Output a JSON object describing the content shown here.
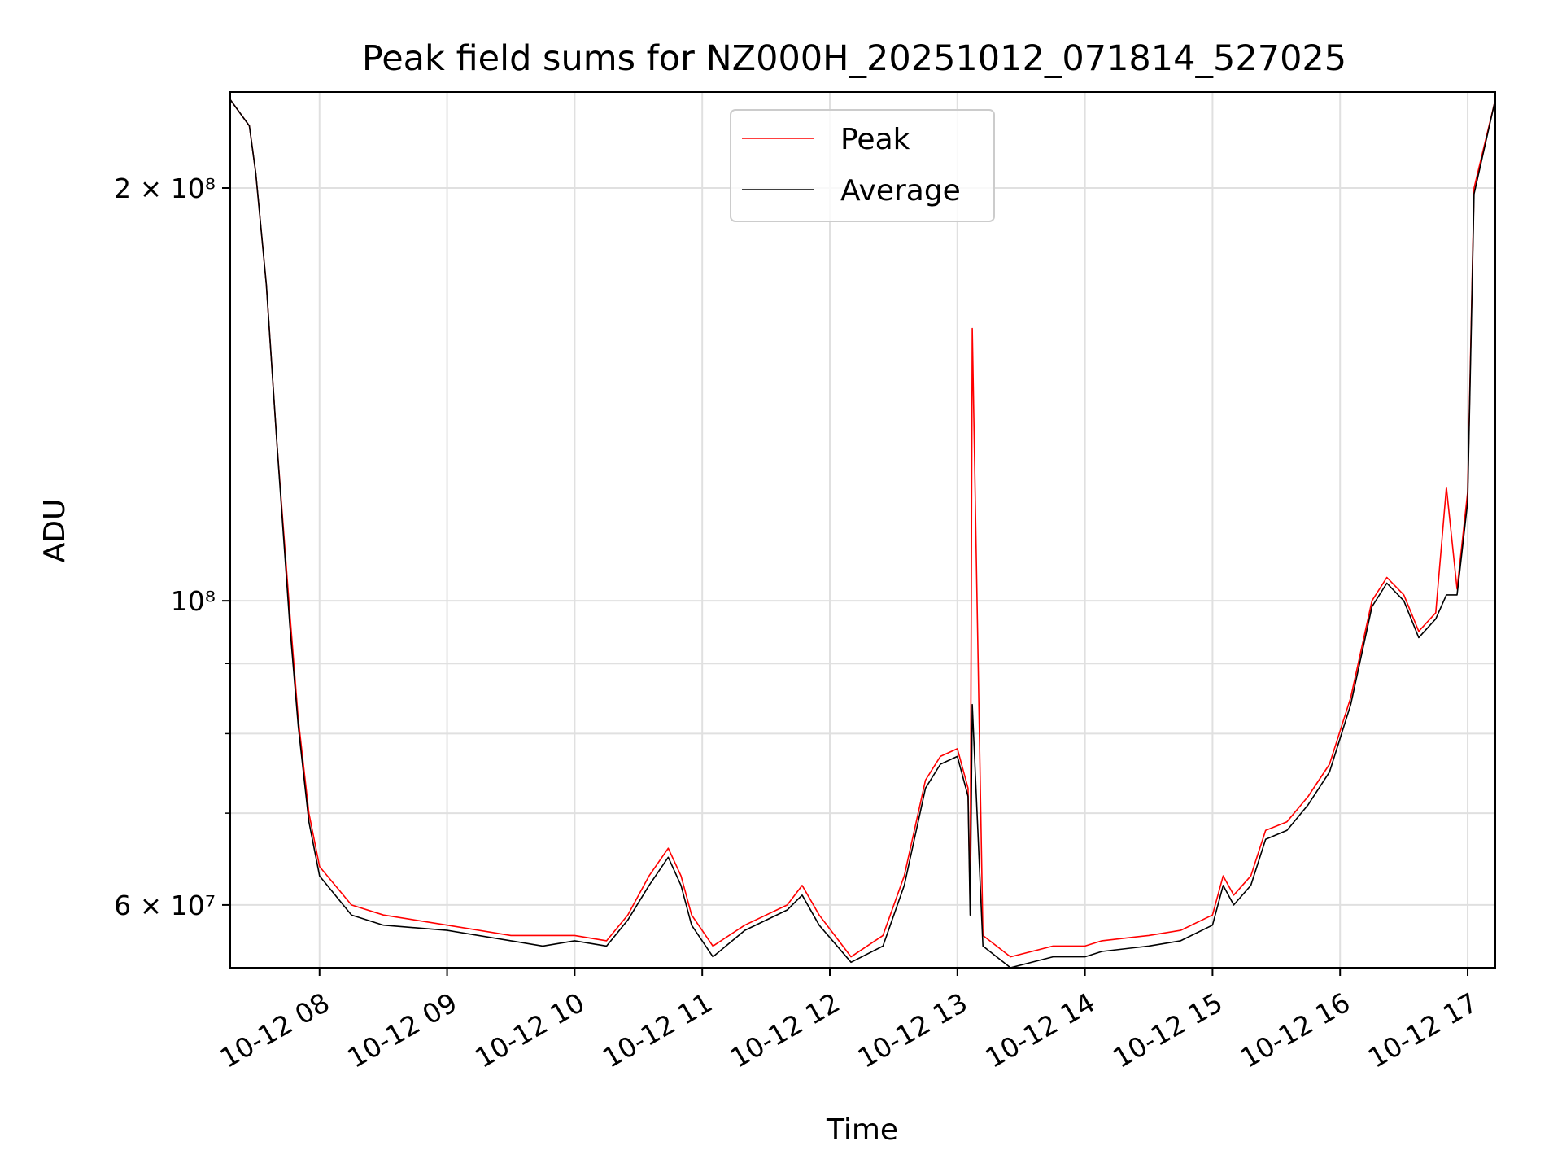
{
  "chart_data": {
    "type": "line",
    "title": "Peak field sums for NZ000H_20251012_071814_527025",
    "xlabel": "Time",
    "ylabel": "ADU",
    "x_scale": "time",
    "y_scale": "log",
    "xlim": [
      "2025-10-12 07:18",
      "2025-10-12 17:13"
    ],
    "ylim": [
      54000000,
      235000000
    ],
    "x_tick_labels": [
      "10-12 08",
      "10-12 09",
      "10-12 10",
      "10-12 11",
      "10-12 12",
      "10-12 13",
      "10-12 14",
      "10-12 15",
      "10-12 16",
      "10-12 17"
    ],
    "x_tick_times": [
      "2025-10-12 08:00",
      "2025-10-12 09:00",
      "2025-10-12 10:00",
      "2025-10-12 11:00",
      "2025-10-12 12:00",
      "2025-10-12 13:00",
      "2025-10-12 14:00",
      "2025-10-12 15:00",
      "2025-10-12 16:00",
      "2025-10-12 17:00"
    ],
    "y_major_ticks": [
      {
        "value": 60000000,
        "label": "6 × 10⁷"
      },
      {
        "value": 100000000,
        "label": "10⁸"
      },
      {
        "value": 200000000,
        "label": "2 × 10⁸"
      }
    ],
    "y_minor_ticks": [
      70000000,
      80000000,
      90000000
    ],
    "grid": true,
    "legend_position": "top-center",
    "series": [
      {
        "name": "Peak",
        "color": "#ff0000",
        "x": [
          "2025-10-12 07:18",
          "2025-10-12 07:27",
          "2025-10-12 07:30",
          "2025-10-12 07:35",
          "2025-10-12 07:40",
          "2025-10-12 07:46",
          "2025-10-12 07:50",
          "2025-10-12 07:55",
          "2025-10-12 08:00",
          "2025-10-12 08:15",
          "2025-10-12 08:30",
          "2025-10-12 09:00",
          "2025-10-12 09:30",
          "2025-10-12 09:45",
          "2025-10-12 10:00",
          "2025-10-12 10:15",
          "2025-10-12 10:25",
          "2025-10-12 10:35",
          "2025-10-12 10:44",
          "2025-10-12 10:50",
          "2025-10-12 10:55",
          "2025-10-12 11:05",
          "2025-10-12 11:20",
          "2025-10-12 11:40",
          "2025-10-12 11:47",
          "2025-10-12 11:55",
          "2025-10-12 12:10",
          "2025-10-12 12:25",
          "2025-10-12 12:35",
          "2025-10-12 12:45",
          "2025-10-12 12:52",
          "2025-10-12 13:00",
          "2025-10-12 13:05",
          "2025-10-12 13:06",
          "2025-10-12 13:07",
          "2025-10-12 13:12",
          "2025-10-12 13:25",
          "2025-10-12 13:45",
          "2025-10-12 14:00",
          "2025-10-12 14:08",
          "2025-10-12 14:30",
          "2025-10-12 14:45",
          "2025-10-12 15:00",
          "2025-10-12 15:05",
          "2025-10-12 15:10",
          "2025-10-12 15:18",
          "2025-10-12 15:25",
          "2025-10-12 15:35",
          "2025-10-12 15:45",
          "2025-10-12 15:55",
          "2025-10-12 16:05",
          "2025-10-12 16:15",
          "2025-10-12 16:22",
          "2025-10-12 16:30",
          "2025-10-12 16:37",
          "2025-10-12 16:45",
          "2025-10-12 16:50",
          "2025-10-12 16:55",
          "2025-10-12 17:00",
          "2025-10-12 17:03",
          "2025-10-12 17:13"
        ],
        "y": [
          232000000,
          222000000,
          205000000,
          170000000,
          130000000,
          98000000,
          82000000,
          70000000,
          64000000,
          60000000,
          59000000,
          58000000,
          57000000,
          57000000,
          57000000,
          56500000,
          59000000,
          63000000,
          66000000,
          63000000,
          59000000,
          56000000,
          58000000,
          60000000,
          62000000,
          59000000,
          55000000,
          57000000,
          63000000,
          74000000,
          77000000,
          78000000,
          73000000,
          60000000,
          158000000,
          57000000,
          55000000,
          56000000,
          56000000,
          56500000,
          57000000,
          57500000,
          59000000,
          63000000,
          61000000,
          63000000,
          68000000,
          69000000,
          72000000,
          76000000,
          85000000,
          100000000,
          104000000,
          101000000,
          95000000,
          98000000,
          121000000,
          102000000,
          120000000,
          200000000,
          232000000
        ]
      },
      {
        "name": "Average",
        "color": "#000000",
        "x": [
          "2025-10-12 07:18",
          "2025-10-12 07:27",
          "2025-10-12 07:30",
          "2025-10-12 07:35",
          "2025-10-12 07:40",
          "2025-10-12 07:46",
          "2025-10-12 07:50",
          "2025-10-12 07:55",
          "2025-10-12 08:00",
          "2025-10-12 08:15",
          "2025-10-12 08:30",
          "2025-10-12 09:00",
          "2025-10-12 09:30",
          "2025-10-12 09:45",
          "2025-10-12 10:00",
          "2025-10-12 10:15",
          "2025-10-12 10:25",
          "2025-10-12 10:35",
          "2025-10-12 10:44",
          "2025-10-12 10:50",
          "2025-10-12 10:55",
          "2025-10-12 11:05",
          "2025-10-12 11:20",
          "2025-10-12 11:40",
          "2025-10-12 11:47",
          "2025-10-12 11:55",
          "2025-10-12 12:10",
          "2025-10-12 12:25",
          "2025-10-12 12:35",
          "2025-10-12 12:45",
          "2025-10-12 12:52",
          "2025-10-12 13:00",
          "2025-10-12 13:05",
          "2025-10-12 13:06",
          "2025-10-12 13:07",
          "2025-10-12 13:12",
          "2025-10-12 13:25",
          "2025-10-12 13:45",
          "2025-10-12 14:00",
          "2025-10-12 14:08",
          "2025-10-12 14:30",
          "2025-10-12 14:45",
          "2025-10-12 15:00",
          "2025-10-12 15:05",
          "2025-10-12 15:10",
          "2025-10-12 15:18",
          "2025-10-12 15:25",
          "2025-10-12 15:35",
          "2025-10-12 15:45",
          "2025-10-12 15:55",
          "2025-10-12 16:05",
          "2025-10-12 16:15",
          "2025-10-12 16:22",
          "2025-10-12 16:30",
          "2025-10-12 16:37",
          "2025-10-12 16:45",
          "2025-10-12 16:50",
          "2025-10-12 16:55",
          "2025-10-12 17:00",
          "2025-10-12 17:03",
          "2025-10-12 17:13"
        ],
        "y": [
          232000000,
          222000000,
          205000000,
          170000000,
          130000000,
          96000000,
          81000000,
          69000000,
          63000000,
          59000000,
          58000000,
          57500000,
          56500000,
          56000000,
          56500000,
          56000000,
          58500000,
          62000000,
          65000000,
          62000000,
          58000000,
          55000000,
          57500000,
          59500000,
          61000000,
          58000000,
          54500000,
          56000000,
          62000000,
          73000000,
          76000000,
          77000000,
          72000000,
          59000000,
          84000000,
          56000000,
          54000000,
          55000000,
          55000000,
          55500000,
          56000000,
          56500000,
          58000000,
          62000000,
          60000000,
          62000000,
          67000000,
          68000000,
          71000000,
          75000000,
          84000000,
          99000000,
          103000000,
          100000000,
          94000000,
          97000000,
          101000000,
          101000000,
          118000000,
          198000000,
          232000000
        ]
      }
    ]
  }
}
